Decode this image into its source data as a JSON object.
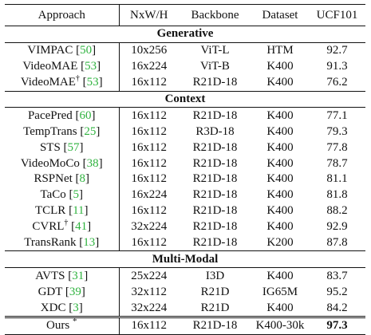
{
  "headers": [
    "Approach",
    "NxW/H",
    "Backbone",
    "Dataset",
    "UCF101"
  ],
  "sections": [
    {
      "title": "Generative",
      "rows": [
        {
          "name": "VIMPAC",
          "mark": "",
          "cite": "50",
          "size": "10x256",
          "backbone": "ViT-L",
          "dataset": "HTM",
          "ucf": "92.7"
        },
        {
          "name": "VideoMAE",
          "mark": "",
          "cite": "53",
          "size": "16x224",
          "backbone": "ViT-B",
          "dataset": "K400",
          "ucf": "91.3"
        },
        {
          "name": "VideoMAE",
          "mark": "†",
          "cite": "53",
          "size": "16x112",
          "backbone": "R21D-18",
          "dataset": "K400",
          "ucf": "76.2"
        }
      ]
    },
    {
      "title": "Context",
      "rows": [
        {
          "name": "PacePred",
          "mark": "",
          "cite": "60",
          "size": "16x112",
          "backbone": "R21D-18",
          "dataset": "K400",
          "ucf": "77.1"
        },
        {
          "name": "TempTrans",
          "mark": "",
          "cite": "25",
          "size": "16x112",
          "backbone": "R3D-18",
          "dataset": "K400",
          "ucf": "79.3"
        },
        {
          "name": "STS",
          "mark": "",
          "cite": "57",
          "size": "16x112",
          "backbone": "R21D-18",
          "dataset": "K400",
          "ucf": "77.8"
        },
        {
          "name": "VideoMoCo",
          "mark": "",
          "cite": "38",
          "size": "16x112",
          "backbone": "R21D-18",
          "dataset": "K400",
          "ucf": "78.7"
        },
        {
          "name": "RSPNet",
          "mark": "",
          "cite": "8",
          "size": "16x112",
          "backbone": "R21D-18",
          "dataset": "K400",
          "ucf": "81.1"
        },
        {
          "name": "TaCo",
          "mark": "",
          "cite": "5",
          "size": "16x224",
          "backbone": "R21D-18",
          "dataset": "K400",
          "ucf": "81.8"
        },
        {
          "name": "TCLR",
          "mark": "",
          "cite": "11",
          "size": "16x112",
          "backbone": "R21D-18",
          "dataset": "K400",
          "ucf": "88.2"
        },
        {
          "name": "CVRL",
          "mark": "†",
          "cite": "41",
          "size": "32x224",
          "backbone": "R21D-18",
          "dataset": "K400",
          "ucf": "92.9"
        },
        {
          "name": "TransRank",
          "mark": "",
          "cite": "13",
          "size": "16x112",
          "backbone": "R21D-18",
          "dataset": "K200",
          "ucf": "87.8"
        }
      ]
    },
    {
      "title": "Multi-Modal",
      "rows": [
        {
          "name": "AVTS",
          "mark": "",
          "cite": "31",
          "size": "25x224",
          "backbone": "I3D",
          "dataset": "K400",
          "ucf": "83.7"
        },
        {
          "name": "GDT",
          "mark": "",
          "cite": "39",
          "size": "32x112",
          "backbone": "R21D",
          "dataset": "IG65M",
          "ucf": "95.2"
        },
        {
          "name": "XDC",
          "mark": "",
          "cite": "3",
          "size": "32x224",
          "backbone": "R21D",
          "dataset": "K400",
          "ucf": "84.2"
        }
      ]
    }
  ],
  "ours": {
    "name": "Ours",
    "mark": "*",
    "size": "16x112",
    "backbone": "R21D-18",
    "dataset": "K400-30k",
    "ucf": "97.3"
  }
}
